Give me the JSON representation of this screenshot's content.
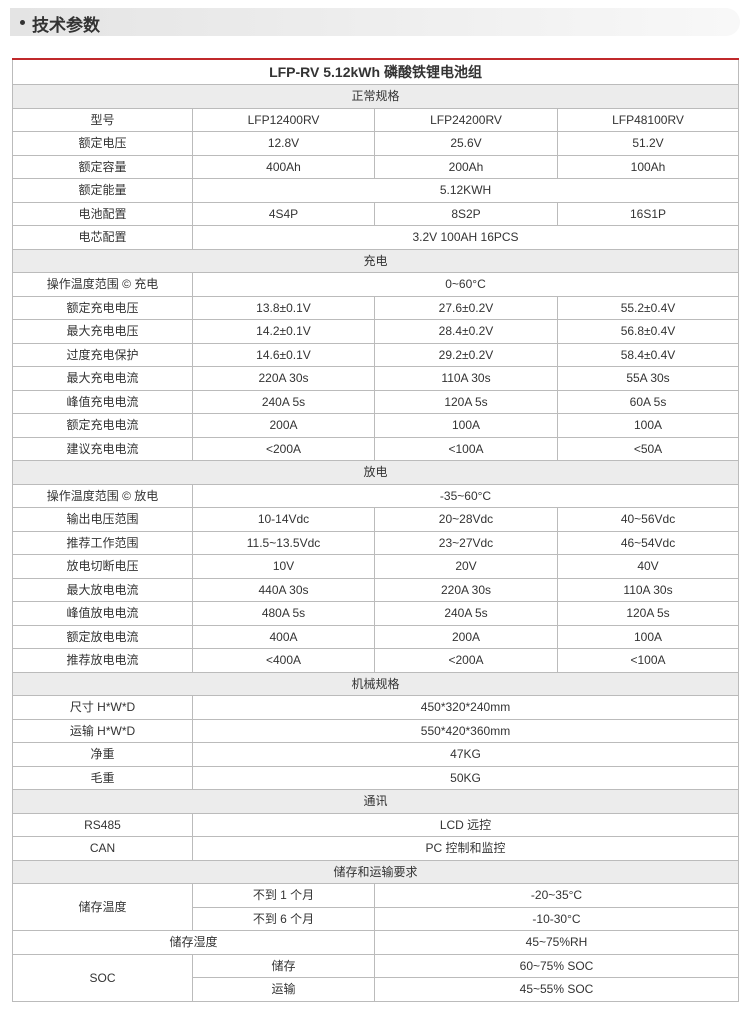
{
  "header": {
    "title": "技术参数"
  },
  "table": {
    "title": "LFP-RV 5.12kWh 磷酸铁锂电池组",
    "sections": [
      {
        "name": "正常规格",
        "rows": [
          [
            "型号",
            "LFP12400RV",
            "LFP24200RV",
            "LFP48100RV"
          ],
          [
            "额定电压",
            "12.8V",
            "25.6V",
            "51.2V"
          ],
          [
            "额定容量",
            "400Ah",
            "200Ah",
            "100Ah"
          ],
          [
            "额定能量",
            "5.12KWH"
          ],
          [
            "电池配置",
            "4S4P",
            "8S2P",
            "16S1P"
          ],
          [
            "电芯配置",
            "3.2V 100AH 16PCS"
          ]
        ]
      },
      {
        "name": "充电",
        "rows": [
          [
            "操作温度范围 © 充电",
            "0~60°C"
          ],
          [
            "额定充电电压",
            "13.8±0.1V",
            "27.6±0.2V",
            "55.2±0.4V"
          ],
          [
            "最大充电电压",
            "14.2±0.1V",
            "28.4±0.2V",
            "56.8±0.4V"
          ],
          [
            "过度充电保护",
            "14.6±0.1V",
            "29.2±0.2V",
            "58.4±0.4V"
          ],
          [
            "最大充电电流",
            "220A  30s",
            "110A 30s",
            "55A 30s"
          ],
          [
            "峰值充电电流",
            "240A  5s",
            "120A 5s",
            "60A 5s"
          ],
          [
            "额定充电电流",
            "200A",
            "100A",
            "100A"
          ],
          [
            "建议充电电流",
            "<200A",
            "<100A",
            "<50A"
          ]
        ]
      },
      {
        "name": "放电",
        "rows": [
          [
            "操作温度范围 © 放电",
            "-35~60°C"
          ],
          [
            "输出电压范围",
            "10-14Vdc",
            "20~28Vdc",
            "40~56Vdc"
          ],
          [
            "推荐工作范围",
            "11.5~13.5Vdc",
            "23~27Vdc",
            "46~54Vdc"
          ],
          [
            "放电切断电压",
            "10V",
            "20V",
            "40V"
          ],
          [
            "最大放电电流",
            "440A  30s",
            "220A 30s",
            "110A  30s"
          ],
          [
            "峰值放电电流",
            "480A   5s",
            "240A  5s",
            "120A  5s"
          ],
          [
            "额定放电电流",
            "400A",
            "200A",
            "100A"
          ],
          [
            "推荐放电电流",
            "<400A",
            "<200A",
            "<100A"
          ]
        ]
      },
      {
        "name": "机械规格",
        "rows": [
          [
            "尺寸 H*W*D",
            "450*320*240mm"
          ],
          [
            "运输 H*W*D",
            "550*420*360mm"
          ],
          [
            "净重",
            "47KG"
          ],
          [
            "毛重",
            "50KG"
          ]
        ]
      },
      {
        "name": "通讯",
        "rows": [
          [
            "RS485",
            "LCD 远控"
          ],
          [
            "CAN",
            "PC 控制和监控"
          ]
        ]
      },
      {
        "name": "储存和运输要求",
        "rows": [
          [
            "储存温度",
            "不到 1 个月",
            "-20~35°C"
          ],
          [
            "不到 6 个月",
            "-10-30°C"
          ],
          [
            "储存湿度",
            "45~75%RH"
          ],
          [
            "SOC",
            "储存",
            "60~75% SOC"
          ],
          [
            "运输",
            "45~55% SOC"
          ]
        ]
      }
    ]
  }
}
